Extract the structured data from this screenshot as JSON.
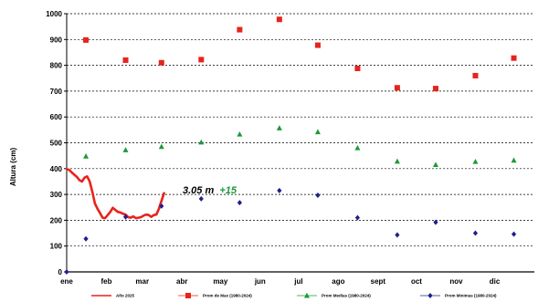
{
  "chart_data": {
    "type": "line",
    "ylabel": "Altura (cm)",
    "xlabel": "",
    "ylim": [
      0,
      1000
    ],
    "yticks": [
      "0",
      "100",
      "200",
      "300",
      "400",
      "500",
      "600",
      "700",
      "800",
      "900",
      "1000"
    ],
    "xticks": [
      "ene",
      "feb",
      "mar",
      "abr",
      "may",
      "jun",
      "jul",
      "ago",
      "sept",
      "oct",
      "nov",
      "dic"
    ],
    "grid": "horizontal dashed",
    "legend_position": "bottom",
    "annotation": {
      "value_text": "3.05 m",
      "change_text": "+15",
      "value_color": "#000000",
      "change_color": "#1a9a3a"
    },
    "series": [
      {
        "name": "Año 2025",
        "color": "#e8231c",
        "style": "line",
        "x": [
          0,
          2,
          4,
          6,
          8,
          10,
          12,
          14,
          16,
          18,
          20,
          22,
          24,
          26,
          28,
          30,
          32,
          34,
          36,
          38,
          40,
          42,
          44,
          46,
          48,
          50,
          52,
          54,
          56,
          58,
          60,
          62,
          64,
          66,
          68,
          70,
          72,
          74,
          76
        ],
        "values": [
          398,
          395,
          385,
          376,
          368,
          355,
          350,
          365,
          370,
          350,
          310,
          265,
          245,
          228,
          210,
          208,
          220,
          232,
          248,
          240,
          232,
          230,
          225,
          222,
          212,
          210,
          215,
          208,
          210,
          212,
          218,
          222,
          220,
          213,
          220,
          222,
          245,
          275,
          305
        ]
      },
      {
        "name": "Prom de Max (1980-2024)",
        "color": "#e8231c",
        "style": "square",
        "x": [
          15,
          46,
          74,
          105,
          135,
          166,
          196,
          227,
          258,
          288,
          319,
          349
        ],
        "values": [
          898,
          820,
          810,
          822,
          938,
          978,
          878,
          788,
          713,
          710,
          760,
          828
        ]
      },
      {
        "name": "Prom Medias (1980-2024)",
        "color": "#1a9a3a",
        "style": "triangle",
        "x": [
          15,
          46,
          74,
          105,
          135,
          166,
          196,
          227,
          258,
          288,
          319,
          349
        ],
        "values": [
          448,
          472,
          485,
          502,
          533,
          557,
          542,
          480,
          428,
          415,
          427,
          432
        ]
      },
      {
        "name": "Prom Minimas (1980-2024)",
        "color": "#1f1f8c",
        "style": "diamond",
        "x": [
          0,
          15,
          46,
          74,
          105,
          135,
          166,
          196,
          227,
          258,
          288,
          319,
          349
        ],
        "values": [
          0,
          128,
          213,
          255,
          283,
          268,
          315,
          297,
          210,
          143,
          192,
          150,
          146
        ]
      }
    ]
  }
}
